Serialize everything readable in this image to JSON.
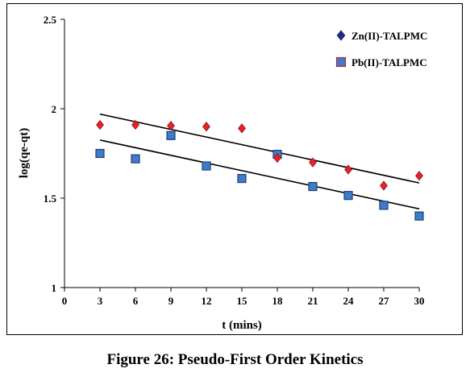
{
  "caption": "Figure 26: Pseudo-First Order Kinetics",
  "colors": {
    "zn_fill": "#e8202a",
    "zn_edge": "#9a1015",
    "pb_fill": "#3c7cc8",
    "pb_edge": "#1e3f78",
    "legend_zn_fill": "#1e2f8a",
    "legend_pb_edge": "#c8202a",
    "trend": "#000000"
  },
  "chart_data": {
    "type": "scatter",
    "xlabel": "t (mins)",
    "ylabel": "log(qe-qt)",
    "xlim": [
      0,
      30
    ],
    "ylim": [
      1,
      2.5
    ],
    "x_ticks": [
      "0",
      "3",
      "6",
      "9",
      "12",
      "15",
      "18",
      "21",
      "24",
      "27",
      "30"
    ],
    "y_ticks": [
      "1",
      "1.5",
      "2",
      "2.5"
    ],
    "grid": false,
    "legend_position": "top-right",
    "series": [
      {
        "name": "Zn(II)-TALPMC",
        "marker": "diamond",
        "points": [
          [
            3,
            1.91
          ],
          [
            6,
            1.91
          ],
          [
            9,
            1.905
          ],
          [
            12,
            1.9
          ],
          [
            15,
            1.89
          ],
          [
            18,
            1.725
          ],
          [
            21,
            1.7
          ],
          [
            24,
            1.66
          ],
          [
            27,
            1.57
          ],
          [
            30,
            1.625
          ]
        ],
        "trendline": [
          [
            3,
            1.97
          ],
          [
            30,
            1.585
          ]
        ]
      },
      {
        "name": "Pb(II)-TALPMC",
        "marker": "square",
        "points": [
          [
            3,
            1.75
          ],
          [
            6,
            1.72
          ],
          [
            9,
            1.85
          ],
          [
            12,
            1.68
          ],
          [
            15,
            1.61
          ],
          [
            18,
            1.745
          ],
          [
            21,
            1.565
          ],
          [
            24,
            1.515
          ],
          [
            27,
            1.46
          ],
          [
            30,
            1.4
          ]
        ],
        "trendline": [
          [
            3,
            1.825
          ],
          [
            30,
            1.44
          ]
        ]
      }
    ]
  }
}
